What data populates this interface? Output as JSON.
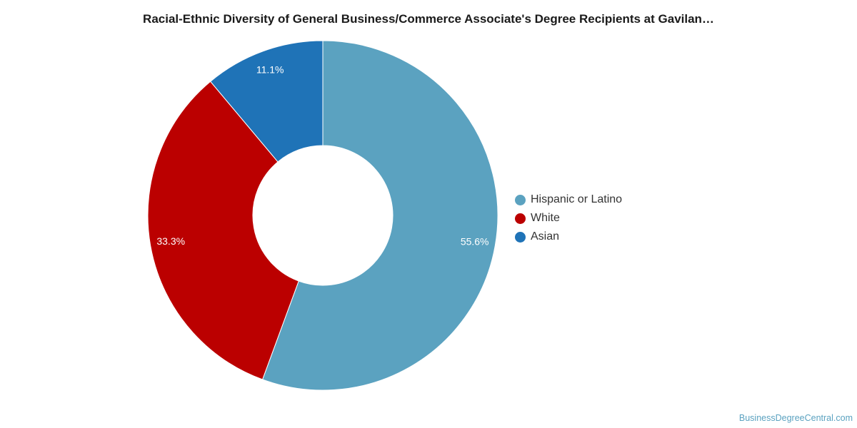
{
  "chart_data": {
    "type": "pie",
    "donut": true,
    "title": "Racial-Ethnic Diversity of General Business/Commerce Associate's Degree Recipients at Gavilan…",
    "legend_position": "right",
    "slices": [
      {
        "name": "Hispanic or Latino",
        "value": 55.6,
        "label": "55.6%",
        "color": "#5ba2c0"
      },
      {
        "name": "White",
        "value": 33.3,
        "label": "33.3%",
        "color": "#bb0000"
      },
      {
        "name": "Asian",
        "value": 11.1,
        "label": "11.1%",
        "color": "#1f73b7"
      }
    ]
  },
  "footer": {
    "source": "BusinessDegreeCentral.com"
  }
}
